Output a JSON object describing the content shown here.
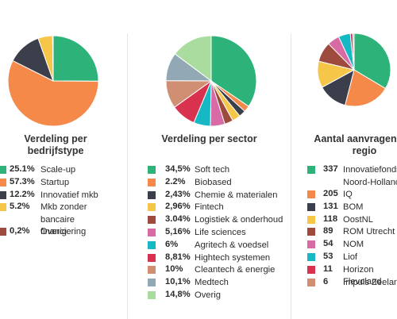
{
  "chart_data": [
    {
      "type": "pie",
      "title": "Verdeling per bedrijfstype",
      "slices": [
        {
          "label": "Scale-up",
          "value": 25.1,
          "display": "25.1%",
          "color": "#2db37a"
        },
        {
          "label": "Startup",
          "value": 57.3,
          "display": "57.3%",
          "color": "#f4894a"
        },
        {
          "label": "Innovatief mkb",
          "value": 12.2,
          "display": "12.2%",
          "color": "#3a3f4b"
        },
        {
          "label": "Mkb zonder bancaire financiering",
          "value": 5.2,
          "display": "5.2%",
          "color": "#f6c649"
        },
        {
          "label": "Overig",
          "value": 0.2,
          "display": "0,2%",
          "color": "#9e4a3c"
        }
      ]
    },
    {
      "type": "pie",
      "title": "Verdeling per sector",
      "slices": [
        {
          "label": "Soft tech",
          "value": 34.5,
          "display": "34,5%",
          "color": "#2db37a"
        },
        {
          "label": "Biobased",
          "value": 2.2,
          "display": "2.2%",
          "color": "#f4894a"
        },
        {
          "label": "Chemie & materialen",
          "value": 2.43,
          "display": "2,43%",
          "color": "#3a3f4b"
        },
        {
          "label": "Fintech",
          "value": 2.96,
          "display": "2,96%",
          "color": "#f6c649"
        },
        {
          "label": "Logistiek & onderhoud",
          "value": 3.04,
          "display": "3.04%",
          "color": "#9e4a3c"
        },
        {
          "label": "Life sciences",
          "value": 5.16,
          "display": "5,16%",
          "color": "#d86aa6"
        },
        {
          "label": "Agritech & voedsel",
          "value": 6,
          "display": "6%",
          "color": "#16b8c4"
        },
        {
          "label": "Hightech systemen",
          "value": 8.81,
          "display": "8,81%",
          "color": "#d8324e"
        },
        {
          "label": "Cleantech & energie",
          "value": 10,
          "display": "10%",
          "color": "#d08e72"
        },
        {
          "label": "Medtech",
          "value": 10.1,
          "display": "10,1%",
          "color": "#92a8b4"
        },
        {
          "label": "Overig",
          "value": 14.8,
          "display": "14,8%",
          "color": "#a9dc9e"
        }
      ]
    },
    {
      "type": "pie",
      "title": "Aantal aanvragen per regio",
      "slices": [
        {
          "label": "Innovatiefonds Noord-Holland",
          "value": 337,
          "display": "337",
          "color": "#2db37a"
        },
        {
          "label": "IQ",
          "value": 205,
          "display": "205",
          "color": "#f4894a"
        },
        {
          "label": "BOM",
          "value": 131,
          "display": "131",
          "color": "#3a3f4b"
        },
        {
          "label": "OostNL",
          "value": 118,
          "display": "118",
          "color": "#f6c649"
        },
        {
          "label": "ROM Utrecht",
          "value": 89,
          "display": "89",
          "color": "#9e4a3c"
        },
        {
          "label": "NOM",
          "value": 54,
          "display": "54",
          "color": "#d86aa6"
        },
        {
          "label": "Liof",
          "value": 53,
          "display": "53",
          "color": "#16b8c4"
        },
        {
          "label": "Horizon Flevoland",
          "value": 11,
          "display": "11",
          "color": "#d8324e"
        },
        {
          "label": "Impuls Zeeland",
          "value": 6,
          "display": "6",
          "color": "#d08e72"
        }
      ]
    }
  ]
}
